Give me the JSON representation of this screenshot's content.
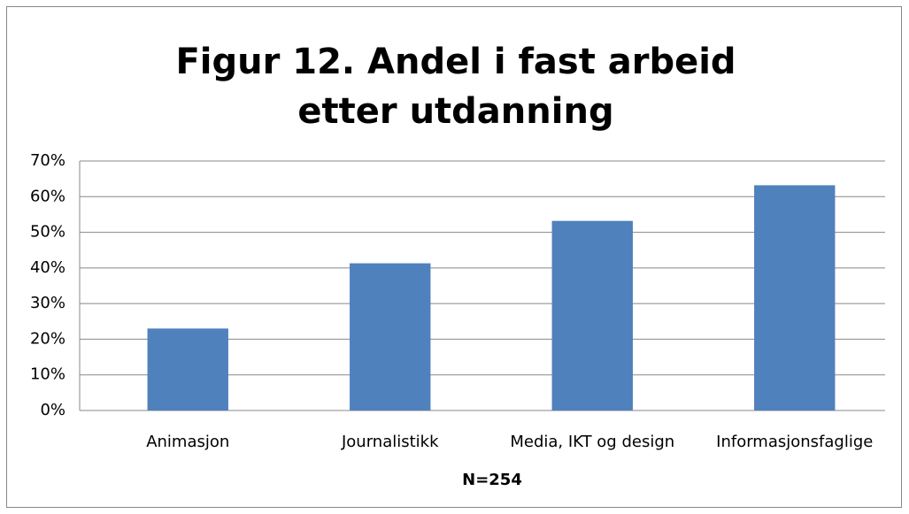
{
  "chart_data": {
    "type": "bar",
    "title": "Figur 12. Andel i fast arbeid etter utdanning",
    "x_label": "N=254",
    "categories": [
      "Animasjon",
      "Journalistikk",
      "Media, IKT og design",
      "Informasjonsfaglige"
    ],
    "values": [
      23,
      41.3,
      53.2,
      63.2
    ],
    "color": "#4f81bd",
    "ylim": [
      0,
      70
    ],
    "yticks": [
      {
        "value": 0,
        "label": "0%"
      },
      {
        "value": 10,
        "label": "10%"
      },
      {
        "value": 20,
        "label": "20%"
      },
      {
        "value": 30,
        "label": "30%"
      },
      {
        "value": 40,
        "label": "40%"
      },
      {
        "value": 50,
        "label": "50%"
      },
      {
        "value": 60,
        "label": "60%"
      },
      {
        "value": 70,
        "label": "70%"
      }
    ],
    "grid": true
  }
}
